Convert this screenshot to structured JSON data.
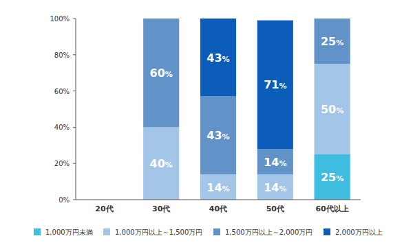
{
  "chart_data": {
    "type": "bar",
    "stacked": true,
    "data_labels": true,
    "legend": "bottom",
    "categories": [
      "20代",
      "30代",
      "40代",
      "50代",
      "60代以上"
    ],
    "ylim": [
      0,
      100
    ],
    "yticks": [
      {
        "value": 0,
        "label": "0%"
      },
      {
        "value": 20,
        "label": "20%"
      },
      {
        "value": 40,
        "label": "40%"
      },
      {
        "value": 60,
        "label": "60%"
      },
      {
        "value": 80,
        "label": "80%"
      },
      {
        "value": 100,
        "label": "100%"
      }
    ],
    "series": [
      {
        "name": "1,000万円未満",
        "color": "#3fbde0",
        "values": [
          null,
          null,
          null,
          null,
          25
        ],
        "value_labels": [
          null,
          null,
          null,
          null,
          "25%"
        ]
      },
      {
        "name": "1,000万円以上～1,500万円",
        "color": "#a2c5e8",
        "values": [
          null,
          40,
          14,
          14,
          50
        ],
        "value_labels": [
          null,
          "40%",
          "14%",
          "14%",
          "50%"
        ]
      },
      {
        "name": "1,500万円以上～2,000万円",
        "color": "#6192c8",
        "values": [
          null,
          60,
          43,
          14,
          25
        ],
        "value_labels": [
          null,
          "60%",
          "43%",
          "14%",
          "25%"
        ]
      },
      {
        "name": "2,000万円以上",
        "color": "#0b5db9",
        "values": [
          null,
          null,
          43,
          71,
          null
        ],
        "value_labels": [
          null,
          null,
          "43%",
          "71%",
          null
        ]
      }
    ]
  }
}
